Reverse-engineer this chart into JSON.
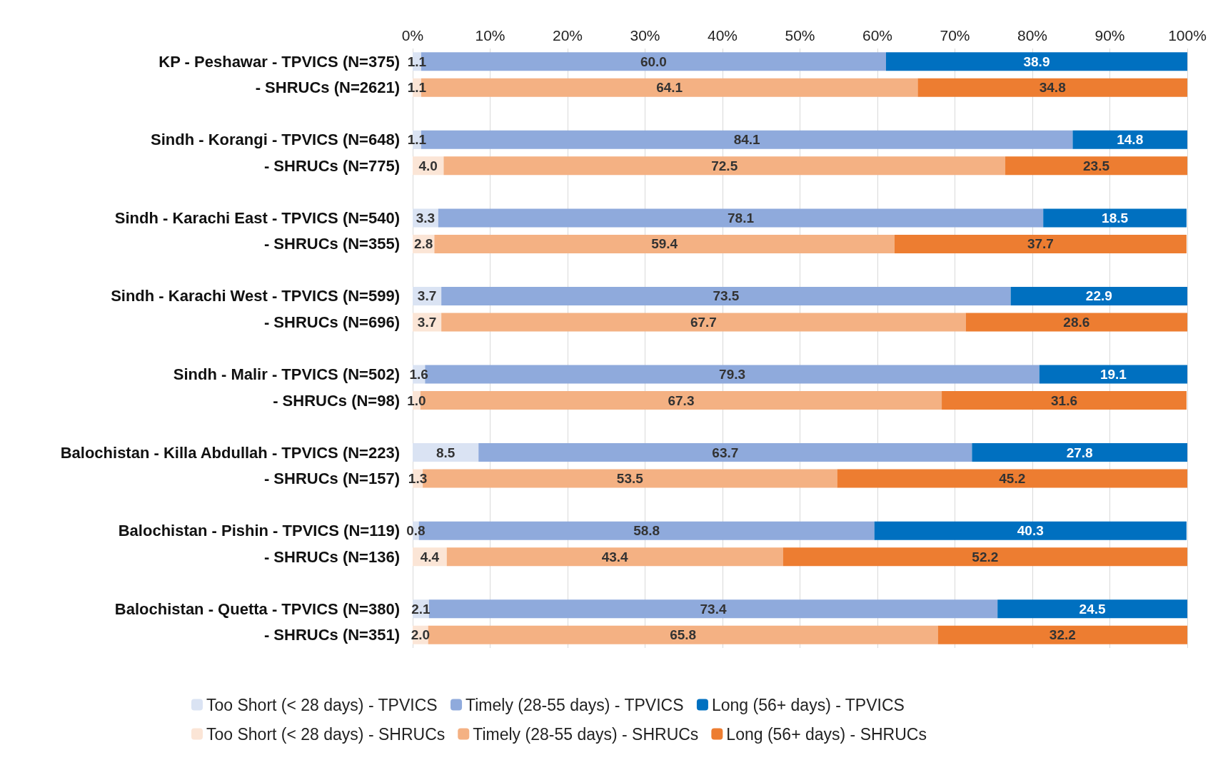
{
  "chart_data": {
    "type": "bar",
    "orientation": "horizontal",
    "stacked": true,
    "categories": [
      "KP - Peshawar - TPVICS (N=375)",
      "- SHRUCs (N=2621)",
      null,
      "Sindh - Korangi - TPVICS (N=648)",
      "- SHRUCs (N=775)",
      null,
      "Sindh - Karachi East - TPVICS (N=540)",
      "- SHRUCs (N=355)",
      null,
      "Sindh - Karachi West - TPVICS (N=599)",
      "- SHRUCs (N=696)",
      null,
      "Sindh - Malir - TPVICS (N=502)",
      "- SHRUCs (N=98)",
      null,
      "Balochistan - Killa Abdullah - TPVICS (N=223)",
      "- SHRUCs (N=157)",
      null,
      "Balochistan - Pishin - TPVICS (N=119)",
      "- SHRUCs (N=136)",
      null,
      "Balochistan - Quetta - TPVICS (N=380)",
      "- SHRUCs (N=351)"
    ],
    "series": [
      {
        "name": "Too Short (< 28 days) - TPVICS",
        "color": "#dae3f3",
        "values": [
          1.1,
          null,
          null,
          1.1,
          null,
          null,
          3.3,
          null,
          null,
          3.7,
          null,
          null,
          1.6,
          null,
          null,
          8.5,
          null,
          null,
          0.8,
          null,
          null,
          2.1,
          null
        ],
        "value_labels": [
          "1.1",
          null,
          null,
          "1.1",
          null,
          null,
          "3.3",
          null,
          null,
          "3.7",
          null,
          null,
          "1.6",
          null,
          null,
          "8.5",
          null,
          null,
          "0.8",
          null,
          null,
          "2.1",
          null
        ]
      },
      {
        "name": "Timely (28-55 days) - TPVICS",
        "color": "#8faadc",
        "values": [
          60.0,
          null,
          null,
          84.1,
          null,
          null,
          78.1,
          null,
          null,
          73.5,
          null,
          null,
          79.3,
          null,
          null,
          63.7,
          null,
          null,
          58.8,
          null,
          null,
          73.4,
          null
        ],
        "value_labels": [
          "60.0",
          null,
          null,
          "84.1",
          null,
          null,
          "78.1",
          null,
          null,
          "73.5",
          null,
          null,
          "79.3",
          null,
          null,
          "63.7",
          null,
          null,
          "58.8",
          null,
          null,
          "73.4",
          null
        ]
      },
      {
        "name": "Long (56+ days) - TPVICS",
        "color": "#0070c0",
        "values": [
          38.9,
          null,
          null,
          14.8,
          null,
          null,
          18.5,
          null,
          null,
          22.9,
          null,
          null,
          19.1,
          null,
          null,
          27.8,
          null,
          null,
          40.3,
          null,
          null,
          24.5,
          null
        ],
        "value_labels": [
          "38.9",
          null,
          null,
          "14.8",
          null,
          null,
          "18.5",
          null,
          null,
          "22.9",
          null,
          null,
          "19.1",
          null,
          null,
          "27.8",
          null,
          null,
          "40.3",
          null,
          null,
          "24.5",
          null
        ]
      },
      {
        "name": "Too Short (< 28 days) - SHRUCs",
        "color": "#fbe5d6",
        "values": [
          null,
          1.1,
          null,
          null,
          4.0,
          null,
          null,
          2.8,
          null,
          null,
          3.7,
          null,
          null,
          1.0,
          null,
          null,
          1.3,
          null,
          null,
          4.4,
          null,
          null,
          2.0
        ],
        "value_labels": [
          null,
          "1.1",
          null,
          null,
          "4.0",
          null,
          null,
          "2.8",
          null,
          null,
          "3.7",
          null,
          null,
          "1.0",
          null,
          null,
          "1.3",
          null,
          null,
          "4.4",
          null,
          null,
          "2.0"
        ]
      },
      {
        "name": "Timely (28-55 days) - SHRUCs",
        "color": "#f4b183",
        "values": [
          null,
          64.1,
          null,
          null,
          72.5,
          null,
          null,
          59.4,
          null,
          null,
          67.7,
          null,
          null,
          67.3,
          null,
          null,
          53.5,
          null,
          null,
          43.4,
          null,
          null,
          65.8
        ],
        "value_labels": [
          null,
          "64.1",
          null,
          null,
          "72.5",
          null,
          null,
          "59.4",
          null,
          null,
          "67.7",
          null,
          null,
          "67.3",
          null,
          null,
          "53.5",
          null,
          null,
          "43.4",
          null,
          null,
          "65.8"
        ]
      },
      {
        "name": "Long (56+ days) - SHRUCs",
        "color": "#ed7d31",
        "values": [
          null,
          34.8,
          null,
          null,
          23.5,
          null,
          null,
          37.7,
          null,
          null,
          28.6,
          null,
          null,
          31.6,
          null,
          null,
          45.2,
          null,
          null,
          52.2,
          null,
          null,
          32.2
        ],
        "value_labels": [
          null,
          "34.8",
          null,
          null,
          "23.5",
          null,
          null,
          "37.7",
          null,
          null,
          "28.6",
          null,
          null,
          "31.6",
          null,
          null,
          "45.2",
          null,
          null,
          "52.2",
          null,
          null,
          "32.2"
        ]
      }
    ],
    "xlim": [
      0,
      100
    ],
    "xticks": [
      {
        "value": 0,
        "label": "0%"
      },
      {
        "value": 10,
        "label": "10%"
      },
      {
        "value": 20,
        "label": "20%"
      },
      {
        "value": 30,
        "label": "30%"
      },
      {
        "value": 40,
        "label": "40%"
      },
      {
        "value": 50,
        "label": "50%"
      },
      {
        "value": 60,
        "label": "60%"
      },
      {
        "value": 70,
        "label": "70%"
      },
      {
        "value": 80,
        "label": "80%"
      },
      {
        "value": 90,
        "label": "90%"
      },
      {
        "value": 100,
        "label": "100%"
      }
    ],
    "grid": "x",
    "legend": "bottom"
  }
}
